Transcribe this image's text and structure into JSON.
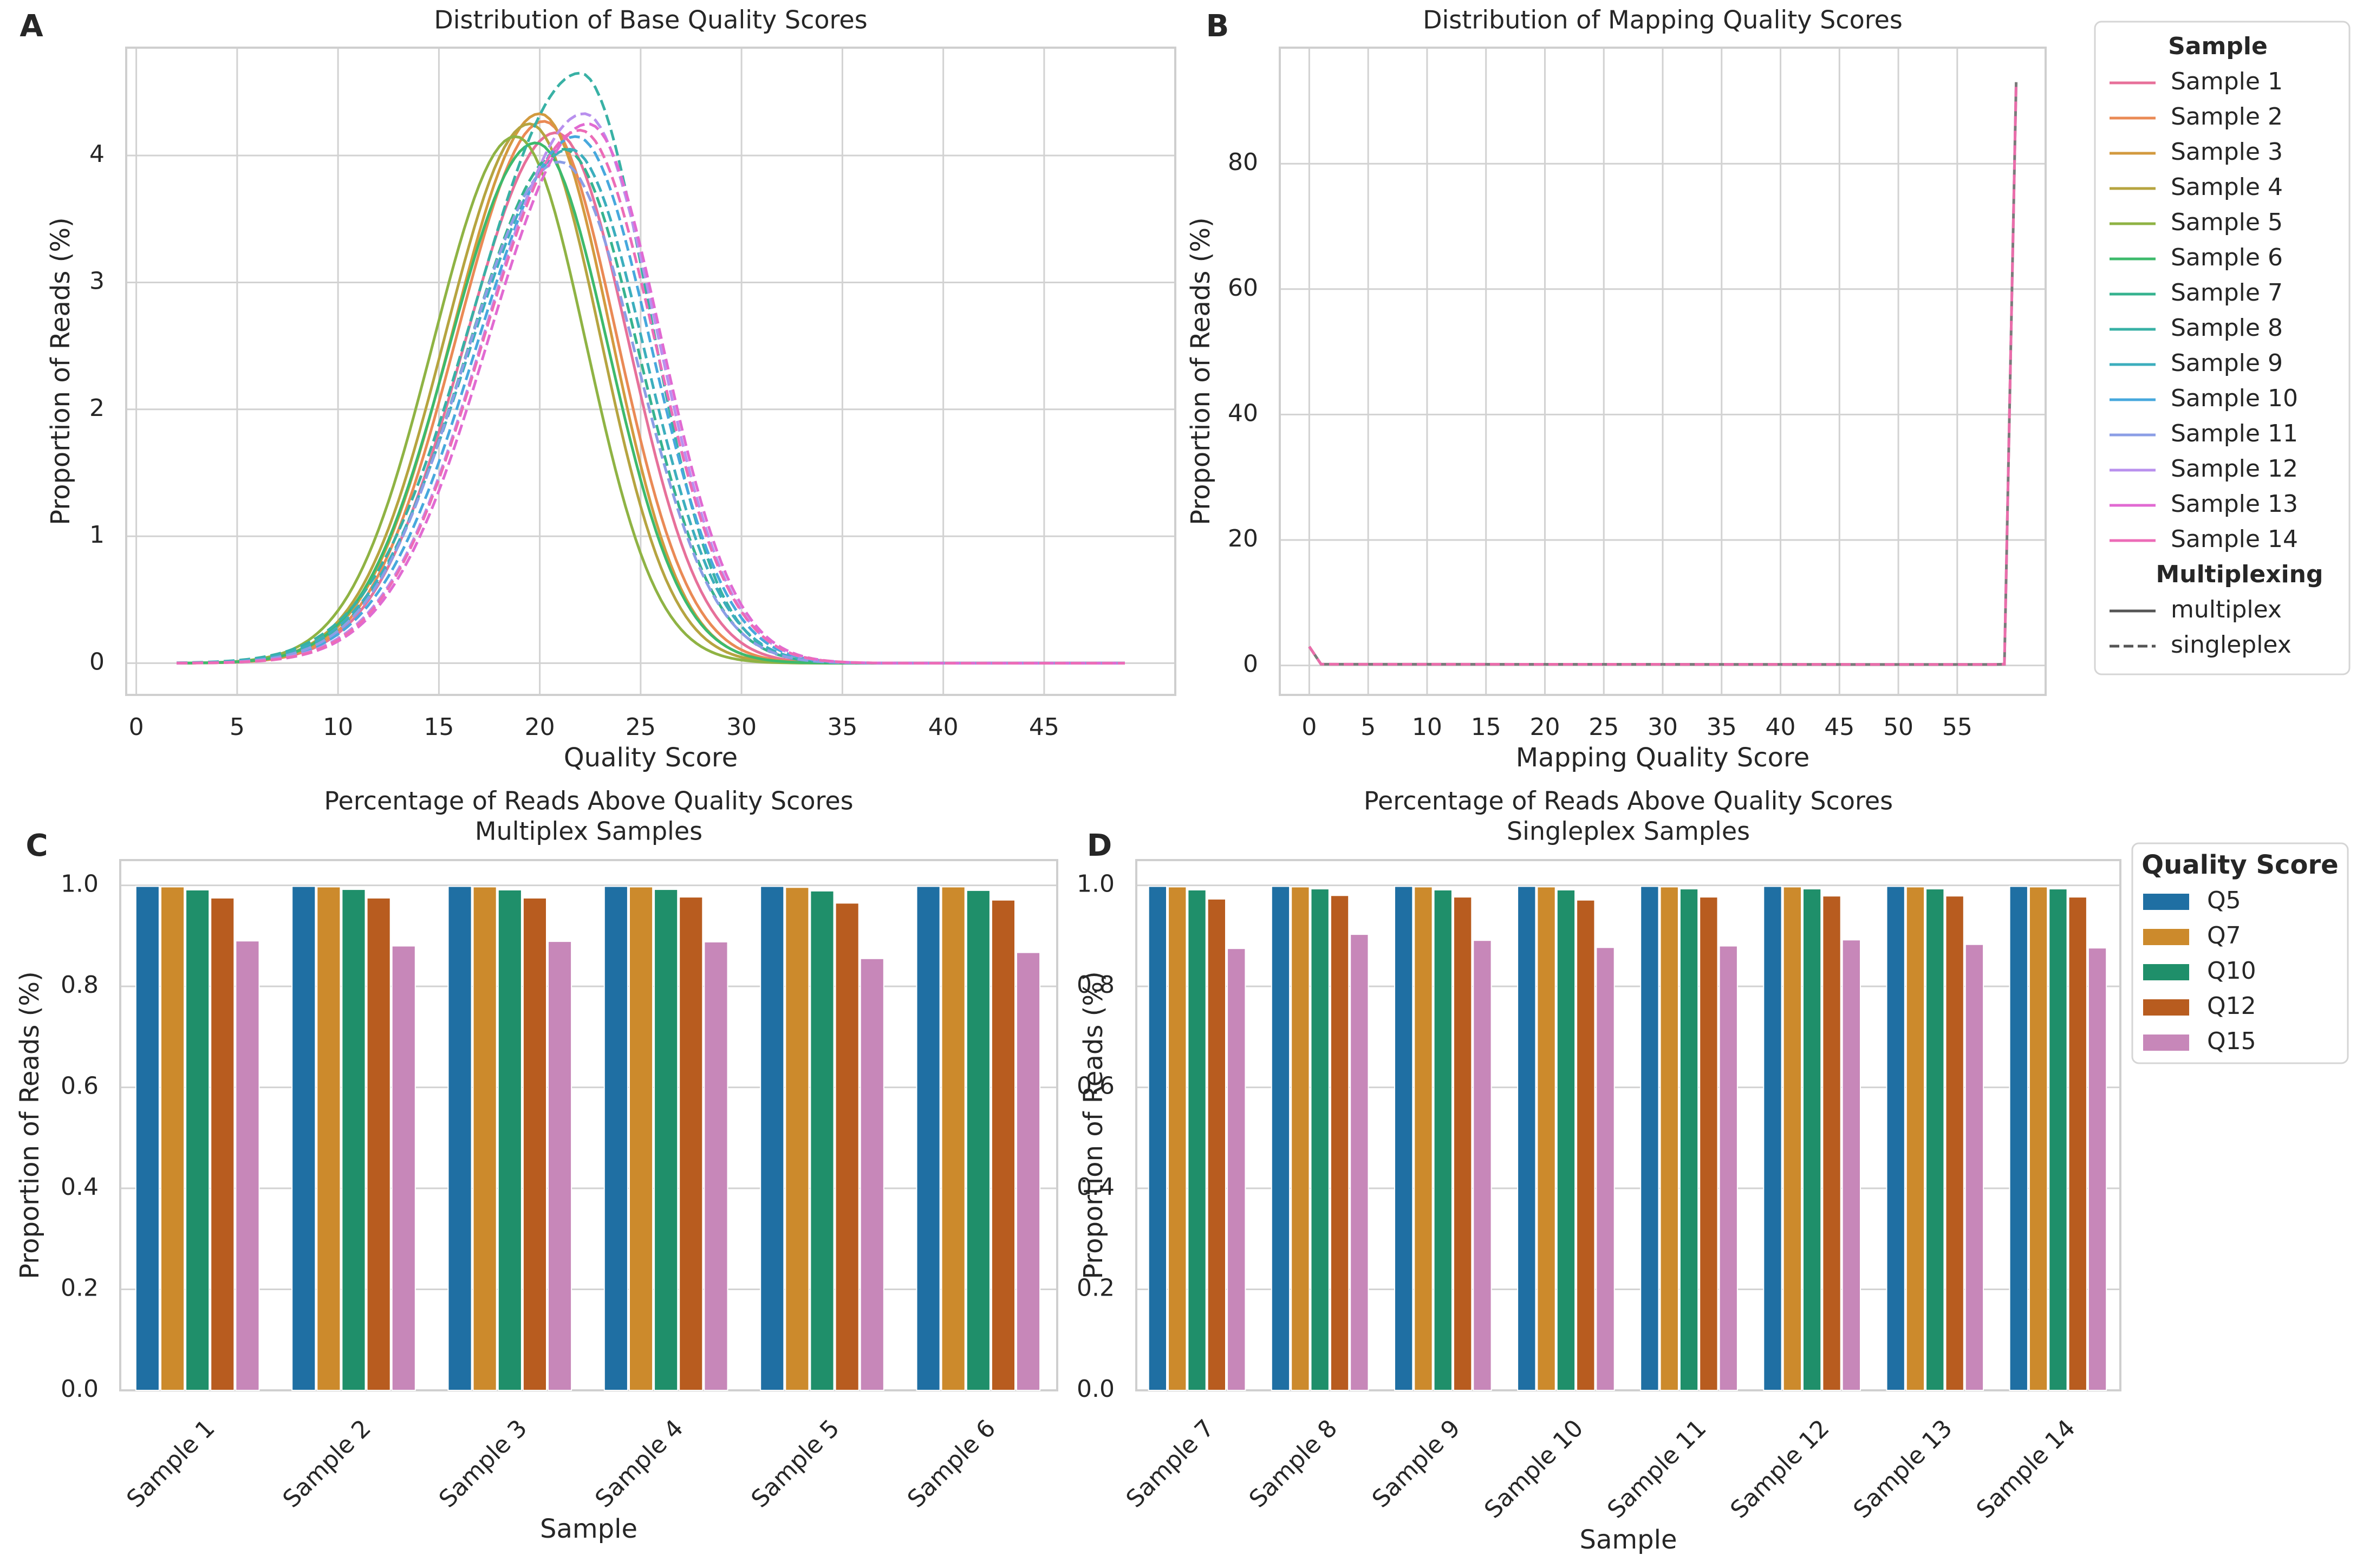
{
  "panel_labels": [
    "A",
    "B",
    "C",
    "D"
  ],
  "legend_samples": {
    "title": "Sample",
    "items": [
      {
        "name": "Sample 1",
        "color": "#e7709a"
      },
      {
        "name": "Sample 2",
        "color": "#ea8a55"
      },
      {
        "name": "Sample 3",
        "color": "#d39a3f"
      },
      {
        "name": "Sample 4",
        "color": "#b6a440"
      },
      {
        "name": "Sample 5",
        "color": "#8fb344"
      },
      {
        "name": "Sample 6",
        "color": "#3dba6c"
      },
      {
        "name": "Sample 7",
        "color": "#36b38f"
      },
      {
        "name": "Sample 8",
        "color": "#38b1a5"
      },
      {
        "name": "Sample 9",
        "color": "#3caebd"
      },
      {
        "name": "Sample 10",
        "color": "#47a8dd"
      },
      {
        "name": "Sample 11",
        "color": "#8b9ee6"
      },
      {
        "name": "Sample 12",
        "color": "#b990ee"
      },
      {
        "name": "Sample 13",
        "color": "#e16ad2"
      },
      {
        "name": "Sample 14",
        "color": "#ec6cb7"
      }
    ],
    "style_title": "Multiplexing",
    "styles": [
      {
        "name": "multiplex",
        "dash": "solid"
      },
      {
        "name": "singleplex",
        "dash": "dashed"
      }
    ]
  },
  "legend_quality": {
    "title": "Quality Score",
    "items": [
      {
        "name": "Q5",
        "color": "#1f6fa3"
      },
      {
        "name": "Q7",
        "color": "#cc8a2c"
      },
      {
        "name": "Q10",
        "color": "#1f8f6a"
      },
      {
        "name": "Q12",
        "color": "#b85c1f"
      },
      {
        "name": "Q15",
        "color": "#c787b9"
      }
    ]
  },
  "chart_data": [
    {
      "panel": "A",
      "type": "line",
      "title": "Distribution of Base Quality Scores",
      "xlabel": "Quality Score",
      "ylabel": "Proportion of Reads (%)",
      "xlim": [
        -0.5,
        51.5
      ],
      "ylim": [
        -0.25,
        4.85
      ],
      "xticks": [
        0,
        5,
        10,
        15,
        20,
        25,
        30,
        35,
        40,
        45
      ],
      "yticks": [
        0,
        1,
        2,
        3,
        4
      ],
      "grid": true,
      "x_range": [
        2,
        49
      ],
      "series": [
        {
          "name": "Sample 1",
          "style": "multiplex",
          "peak": 20.8,
          "height": 4.18,
          "sl": 4.5,
          "sr": 3.6
        },
        {
          "name": "Sample 2",
          "style": "multiplex",
          "peak": 20.2,
          "height": 4.27,
          "sl": 4.3,
          "sr": 3.6
        },
        {
          "name": "Sample 3",
          "style": "multiplex",
          "peak": 20.0,
          "height": 4.33,
          "sl": 4.3,
          "sr": 3.5
        },
        {
          "name": "Sample 4",
          "style": "multiplex",
          "peak": 19.5,
          "height": 4.25,
          "sl": 4.2,
          "sr": 3.5
        },
        {
          "name": "Sample 5",
          "style": "multiplex",
          "peak": 18.8,
          "height": 4.15,
          "sl": 4.1,
          "sr": 3.5
        },
        {
          "name": "Sample 6",
          "style": "multiplex",
          "peak": 19.8,
          "height": 4.1,
          "sl": 4.3,
          "sr": 3.6
        },
        {
          "name": "Sample 7",
          "style": "singleplex",
          "peak": 21.2,
          "height": 4.05,
          "sl": 4.8,
          "sr": 3.7
        },
        {
          "name": "Sample 8",
          "style": "singleplex",
          "peak": 22.0,
          "height": 4.65,
          "sl": 5.2,
          "sr": 3.4
        },
        {
          "name": "Sample 9",
          "style": "singleplex",
          "peak": 21.5,
          "height": 4.05,
          "sl": 5.0,
          "sr": 3.7
        },
        {
          "name": "Sample 10",
          "style": "singleplex",
          "peak": 21.8,
          "height": 4.15,
          "sl": 4.9,
          "sr": 3.7
        },
        {
          "name": "Sample 11",
          "style": "singleplex",
          "peak": 21.0,
          "height": 3.95,
          "sl": 4.7,
          "sr": 3.8
        },
        {
          "name": "Sample 12",
          "style": "singleplex",
          "peak": 22.2,
          "height": 4.33,
          "sl": 4.9,
          "sr": 3.6
        },
        {
          "name": "Sample 13",
          "style": "singleplex",
          "peak": 22.4,
          "height": 4.25,
          "sl": 4.9,
          "sr": 3.6
        },
        {
          "name": "Sample 14",
          "style": "singleplex",
          "peak": 22.0,
          "height": 4.2,
          "sl": 4.8,
          "sr": 3.7
        }
      ]
    },
    {
      "panel": "B",
      "type": "line",
      "title": "Distribution of Mapping Quality Scores",
      "xlabel": "Mapping Quality Score",
      "ylabel": "Proportion of Reads (%)",
      "xlim": [
        -2.5,
        62.5
      ],
      "ylim": [
        -4.7,
        98.5
      ],
      "xticks": [
        0,
        5,
        10,
        15,
        20,
        25,
        30,
        35,
        40,
        45,
        50,
        55
      ],
      "yticks": [
        0,
        20,
        40,
        60,
        80
      ],
      "grid": true,
      "x": [
        0,
        1,
        58,
        59,
        60
      ],
      "y": [
        3.0,
        0.2,
        0.15,
        0.2,
        93.0
      ],
      "series_names": [
        "Sample 1",
        "Sample 2",
        "Sample 3",
        "Sample 4",
        "Sample 5",
        "Sample 6",
        "Sample 7",
        "Sample 8",
        "Sample 9",
        "Sample 10",
        "Sample 11",
        "Sample 12",
        "Sample 13",
        "Sample 14"
      ]
    },
    {
      "panel": "C",
      "type": "bar",
      "title": "Percentage of Reads Above Quality Scores",
      "subtitle": "Multiplex Samples",
      "xlabel": "Sample",
      "ylabel": "Proportion of Reads (%)",
      "ylim": [
        0,
        1.05
      ],
      "yticks": [
        "0.0",
        "0.2",
        "0.4",
        "0.6",
        "0.8",
        "1.0"
      ],
      "categories": [
        "Sample 1",
        "Sample 2",
        "Sample 3",
        "Sample 4",
        "Sample 5",
        "Sample 6"
      ],
      "series": [
        {
          "name": "Q5",
          "values": [
            0.998,
            0.998,
            0.998,
            0.998,
            0.998,
            0.998
          ]
        },
        {
          "name": "Q7",
          "values": [
            0.997,
            0.997,
            0.997,
            0.997,
            0.996,
            0.997
          ]
        },
        {
          "name": "Q10",
          "values": [
            0.991,
            0.992,
            0.991,
            0.992,
            0.989,
            0.99
          ]
        },
        {
          "name": "Q12",
          "values": [
            0.975,
            0.975,
            0.975,
            0.977,
            0.965,
            0.971
          ]
        },
        {
          "name": "Q15",
          "values": [
            0.89,
            0.88,
            0.889,
            0.888,
            0.855,
            0.867
          ]
        }
      ]
    },
    {
      "panel": "D",
      "type": "bar",
      "title": "Percentage of Reads Above Quality Scores",
      "subtitle": "Singleplex Samples",
      "xlabel": "Sample",
      "ylabel": "Proportion of Reads (%)",
      "ylim": [
        0,
        1.05
      ],
      "yticks": [
        "0.0",
        "0.2",
        "0.4",
        "0.6",
        "0.8",
        "1.0"
      ],
      "categories": [
        "Sample 7",
        "Sample 8",
        "Sample 9",
        "Sample 10",
        "Sample 11",
        "Sample 12",
        "Sample 13",
        "Sample 14"
      ],
      "series": [
        {
          "name": "Q5",
          "values": [
            0.998,
            0.998,
            0.998,
            0.998,
            0.998,
            0.998,
            0.998,
            0.998
          ]
        },
        {
          "name": "Q7",
          "values": [
            0.997,
            0.997,
            0.997,
            0.997,
            0.997,
            0.997,
            0.997,
            0.997
          ]
        },
        {
          "name": "Q10",
          "values": [
            0.991,
            0.993,
            0.991,
            0.991,
            0.993,
            0.993,
            0.993,
            0.993
          ]
        },
        {
          "name": "Q12",
          "values": [
            0.973,
            0.98,
            0.977,
            0.971,
            0.977,
            0.979,
            0.979,
            0.977
          ]
        },
        {
          "name": "Q15",
          "values": [
            0.875,
            0.903,
            0.891,
            0.877,
            0.88,
            0.892,
            0.883,
            0.876
          ]
        }
      ]
    }
  ]
}
